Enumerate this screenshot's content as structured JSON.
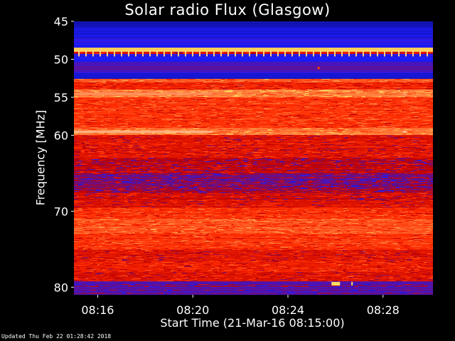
{
  "chart_data": {
    "type": "heatmap",
    "title": "Solar radio Flux (Glasgow)",
    "ylabel": "Frequency [MHz]",
    "xlabel": "Start Time (21-Mar-16 08:15:00)",
    "y_ticks": [
      "45",
      "50",
      "55",
      "60",
      "70",
      "80"
    ],
    "x_ticks": [
      "08:16",
      "08:20",
      "08:24",
      "08:28"
    ],
    "x_range": [
      "08:15:00",
      "08:30:06"
    ],
    "frequency_range_mhz": [
      45,
      81
    ],
    "colorscale": [
      "#0a0a6e",
      "#1c1cff",
      "#c00000",
      "#ff2a00",
      "#ff7a3a",
      "#ffe060"
    ],
    "bands": [
      {
        "from": 45.0,
        "to": 45.8,
        "level": 0.1
      },
      {
        "from": 45.8,
        "to": 47.2,
        "level": 0.15
      },
      {
        "from": 47.2,
        "to": 48.5,
        "level": 0.2
      },
      {
        "from": 48.5,
        "to": 49.0,
        "level": 0.95
      },
      {
        "from": 49.0,
        "to": 49.3,
        "level": 0.5
      },
      {
        "from": 49.3,
        "to": 50.3,
        "level": 0.2
      },
      {
        "from": 50.3,
        "to": 51.8,
        "level": 0.25
      },
      {
        "from": 51.8,
        "to": 52.6,
        "level": 0.15
      },
      {
        "from": 52.6,
        "to": 53.0,
        "level": 0.7
      },
      {
        "from": 53.0,
        "to": 54.0,
        "level": 0.55
      },
      {
        "from": 54.0,
        "to": 55.0,
        "level": 0.8
      },
      {
        "from": 55.0,
        "to": 59.0,
        "level": 0.62
      },
      {
        "from": 59.0,
        "to": 60.0,
        "level": 0.78
      },
      {
        "from": 60.0,
        "to": 63.0,
        "level": 0.5
      },
      {
        "from": 63.0,
        "to": 65.0,
        "level": 0.4
      },
      {
        "from": 65.0,
        "to": 66.5,
        "level": 0.3
      },
      {
        "from": 66.5,
        "to": 67.5,
        "level": 0.35
      },
      {
        "from": 67.5,
        "to": 68.5,
        "level": 0.45
      },
      {
        "from": 68.5,
        "to": 69.5,
        "level": 0.5
      },
      {
        "from": 69.5,
        "to": 71.0,
        "level": 0.6
      },
      {
        "from": 71.0,
        "to": 73.0,
        "level": 0.7
      },
      {
        "from": 73.0,
        "to": 75.0,
        "level": 0.62
      },
      {
        "from": 75.0,
        "to": 76.5,
        "level": 0.5
      },
      {
        "from": 76.5,
        "to": 78.0,
        "level": 0.55
      },
      {
        "from": 78.0,
        "to": 79.2,
        "level": 0.48
      },
      {
        "from": 79.2,
        "to": 81.0,
        "level": 0.28
      }
    ]
  },
  "updated_text": "Updated Thu Feb 22 01:28:42 2018"
}
